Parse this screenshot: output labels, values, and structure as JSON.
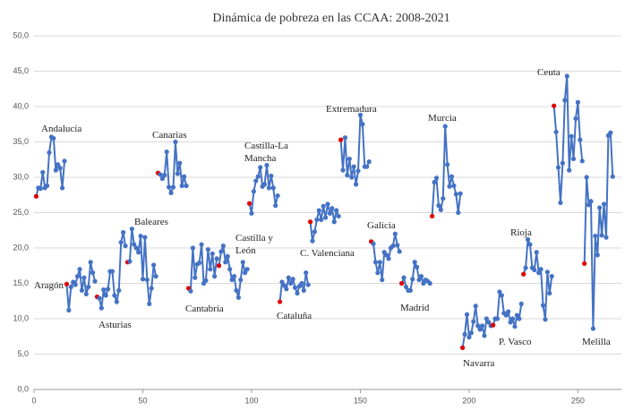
{
  "chart_data": {
    "type": "line",
    "title": "Dinámica de pobreza en las CCAA: 2008-2021",
    "color": "#4472c4",
    "first_color": "#e00000",
    "xlim": [
      0,
      270
    ],
    "xticks": [
      0,
      50,
      100,
      150,
      200,
      250
    ],
    "ylim": [
      0,
      50
    ],
    "yticks": [
      {
        "value": 0,
        "label": "0,0"
      },
      {
        "value": 5,
        "label": "5,0"
      },
      {
        "value": 10,
        "label": "10,0"
      },
      {
        "value": 15,
        "label": "15,0"
      },
      {
        "value": 20,
        "label": "20,0"
      },
      {
        "value": 25,
        "label": "25,0"
      },
      {
        "value": 30,
        "label": "30,0"
      },
      {
        "value": 35,
        "label": "35,0"
      },
      {
        "value": 40,
        "label": "40,0"
      },
      {
        "value": 45,
        "label": "45,0"
      },
      {
        "value": 50,
        "label": "50,0"
      }
    ],
    "grid": true,
    "series": [
      {
        "name": "Andalucía",
        "x": [
          1,
          2,
          3,
          4,
          5,
          6,
          7,
          8,
          9,
          10,
          11,
          12,
          13,
          14
        ],
        "values": [
          27.3,
          28.5,
          28.4,
          30.7,
          28.5,
          28.8,
          33.5,
          35.7,
          35.5,
          31.0,
          31.8,
          31.3,
          28.5,
          32.3
        ]
      },
      {
        "name": "Aragón",
        "x": [
          15,
          16,
          17,
          18,
          19,
          20,
          21,
          22,
          23,
          24,
          25,
          26,
          27,
          28
        ],
        "values": [
          14.9,
          11.2,
          14.5,
          15.2,
          14.8,
          16.0,
          17.0,
          14.0,
          15.8,
          13.5,
          14.5,
          18.0,
          16.5,
          15.3
        ]
      },
      {
        "name": "Asturias",
        "x": [
          29,
          30,
          31,
          32,
          33,
          34,
          35,
          36,
          37,
          38,
          39,
          40,
          41,
          42
        ],
        "values": [
          13.1,
          12.9,
          11.5,
          14.1,
          13.3,
          14.2,
          16.7,
          16.7,
          13.3,
          12.4,
          14.0,
          20.8,
          22.2,
          20.3
        ]
      },
      {
        "name": "Baleares",
        "x": [
          43,
          44,
          45,
          46,
          47,
          48,
          49,
          50,
          51,
          52,
          53,
          54,
          55,
          56
        ],
        "values": [
          18.0,
          18.1,
          22.7,
          20.5,
          20.0,
          19.4,
          21.7,
          15.6,
          21.5,
          15.5,
          12.1,
          14.3,
          17.6,
          16.0
        ]
      },
      {
        "name": "Canarias",
        "x": [
          57,
          58,
          59,
          60,
          61,
          62,
          63,
          64,
          65,
          66,
          67,
          68,
          69,
          70
        ],
        "values": [
          30.6,
          30.4,
          29.8,
          30.3,
          33.6,
          28.6,
          27.8,
          28.6,
          35.0,
          30.5,
          32.0,
          28.8,
          30.1,
          28.8
        ]
      },
      {
        "name": "Cantabria",
        "x": [
          71,
          72,
          73,
          74,
          75,
          76,
          77,
          78,
          79,
          80,
          81,
          82,
          83,
          84
        ],
        "values": [
          14.3,
          13.9,
          20.0,
          15.8,
          17.7,
          17.9,
          20.5,
          15.0,
          15.4,
          19.8,
          17.0,
          19.2,
          16.0,
          18.5
        ]
      },
      {
        "name": "Castilla y León",
        "x": [
          85,
          86,
          87,
          88,
          89,
          90,
          91,
          92,
          93,
          94,
          95,
          96,
          97,
          98
        ],
        "values": [
          17.5,
          19.5,
          20.3,
          18.0,
          18.8,
          17.0,
          15.5,
          16.0,
          14.0,
          13.0,
          15.5,
          18.0,
          16.5,
          17.0
        ]
      },
      {
        "name": "Castilla-La Mancha",
        "x": [
          99,
          100,
          101,
          102,
          103,
          104,
          105,
          106,
          107,
          108,
          109,
          110,
          111,
          112
        ],
        "values": [
          26.3,
          24.9,
          28.0,
          29.5,
          30.1,
          31.4,
          28.7,
          29.0,
          31.7,
          28.5,
          30.2,
          28.5,
          26.0,
          27.4
        ]
      },
      {
        "name": "Cataluña",
        "x": [
          113,
          114,
          115,
          116,
          117,
          118,
          119,
          120,
          121,
          122,
          123,
          124,
          125,
          126
        ],
        "values": [
          12.4,
          15.2,
          14.7,
          14.2,
          15.8,
          15.0,
          15.6,
          14.4,
          13.6,
          14.6,
          15.0,
          14.0,
          16.5,
          14.8
        ]
      },
      {
        "name": "C. Valenciana",
        "x": [
          127,
          128,
          129,
          130,
          131,
          132,
          133,
          134,
          135,
          136,
          137,
          138,
          139,
          140
        ],
        "values": [
          23.7,
          21.0,
          22.3,
          24.0,
          25.3,
          24.0,
          25.9,
          24.3,
          26.2,
          24.9,
          25.6,
          23.7,
          25.3,
          24.5
        ]
      },
      {
        "name": "Extremadura",
        "x": [
          141,
          142,
          143,
          144,
          145,
          146,
          147,
          148,
          149,
          150,
          151,
          152,
          153,
          154
        ],
        "values": [
          35.3,
          31.0,
          35.6,
          30.3,
          32.6,
          30.0,
          31.5,
          29.0,
          30.9,
          38.8,
          37.5,
          31.5,
          31.5,
          32.2
        ]
      },
      {
        "name": "Galicia",
        "x": [
          155,
          156,
          157,
          158,
          159,
          160,
          161,
          162,
          163,
          164,
          165,
          166,
          167,
          168
        ],
        "values": [
          20.9,
          20.6,
          18.0,
          16.5,
          18.0,
          15.5,
          19.4,
          19.0,
          18.5,
          20.0,
          20.3,
          22.0,
          20.4,
          19.5
        ]
      },
      {
        "name": "Madrid",
        "x": [
          169,
          170,
          171,
          172,
          173,
          174,
          175,
          176,
          177,
          178,
          179,
          180,
          181,
          182
        ],
        "values": [
          15.0,
          15.8,
          14.5,
          14.0,
          14.0,
          15.6,
          18.0,
          17.3,
          15.5,
          16.0,
          15.0,
          15.5,
          15.3,
          15.0
        ]
      },
      {
        "name": "Murcia",
        "x": [
          183,
          184,
          185,
          186,
          187,
          188,
          189,
          190,
          191,
          192,
          193,
          194,
          195,
          196
        ],
        "values": [
          24.5,
          29.3,
          29.9,
          26.0,
          25.4,
          27.0,
          37.2,
          31.8,
          28.7,
          30.1,
          28.8,
          27.6,
          25.0,
          27.7
        ]
      },
      {
        "name": "Navarra",
        "x": [
          197,
          198,
          199,
          200,
          201,
          202,
          203,
          204,
          205,
          206,
          207,
          208,
          209,
          210
        ],
        "values": [
          5.9,
          7.8,
          10.6,
          7.4,
          8.0,
          9.6,
          11.8,
          9.0,
          8.5,
          9.0,
          7.6,
          10.0,
          9.5,
          9.0
        ]
      },
      {
        "name": "P. Vasco",
        "x": [
          211,
          212,
          213,
          214,
          215,
          216,
          217,
          218,
          219,
          220,
          221,
          222,
          223,
          224
        ],
        "values": [
          9.1,
          10.0,
          10.0,
          13.8,
          13.3,
          10.8,
          10.5,
          11.0,
          9.5,
          10.0,
          8.9,
          10.5,
          10.0,
          12.1
        ]
      },
      {
        "name": "Rioja",
        "x": [
          225,
          226,
          227,
          228,
          229,
          230,
          231,
          232,
          233,
          234,
          235,
          236,
          237,
          238
        ],
        "values": [
          16.3,
          17.2,
          21.2,
          20.5,
          17.2,
          16.9,
          19.4,
          16.5,
          17.0,
          11.9,
          9.9,
          16.6,
          13.6,
          16.0
        ]
      },
      {
        "name": "Ceuta",
        "x": [
          239,
          240,
          241,
          242,
          243,
          244,
          245,
          246,
          247,
          248,
          249,
          250,
          251,
          252
        ],
        "values": [
          40.1,
          36.4,
          31.4,
          26.4,
          32.0,
          40.9,
          44.3,
          31.0,
          35.8,
          32.6,
          38.3,
          40.6,
          35.3,
          32.3
        ]
      },
      {
        "name": "Melilla",
        "x": [
          253,
          254,
          255,
          256,
          257,
          258,
          259,
          260,
          261,
          262,
          263,
          264,
          265,
          266
        ],
        "values": [
          17.8,
          30.0,
          26.1,
          26.6,
          8.6,
          21.7,
          19.0,
          25.7,
          21.8,
          26.2,
          21.5,
          35.9,
          36.3,
          30.1
        ]
      }
    ]
  }
}
